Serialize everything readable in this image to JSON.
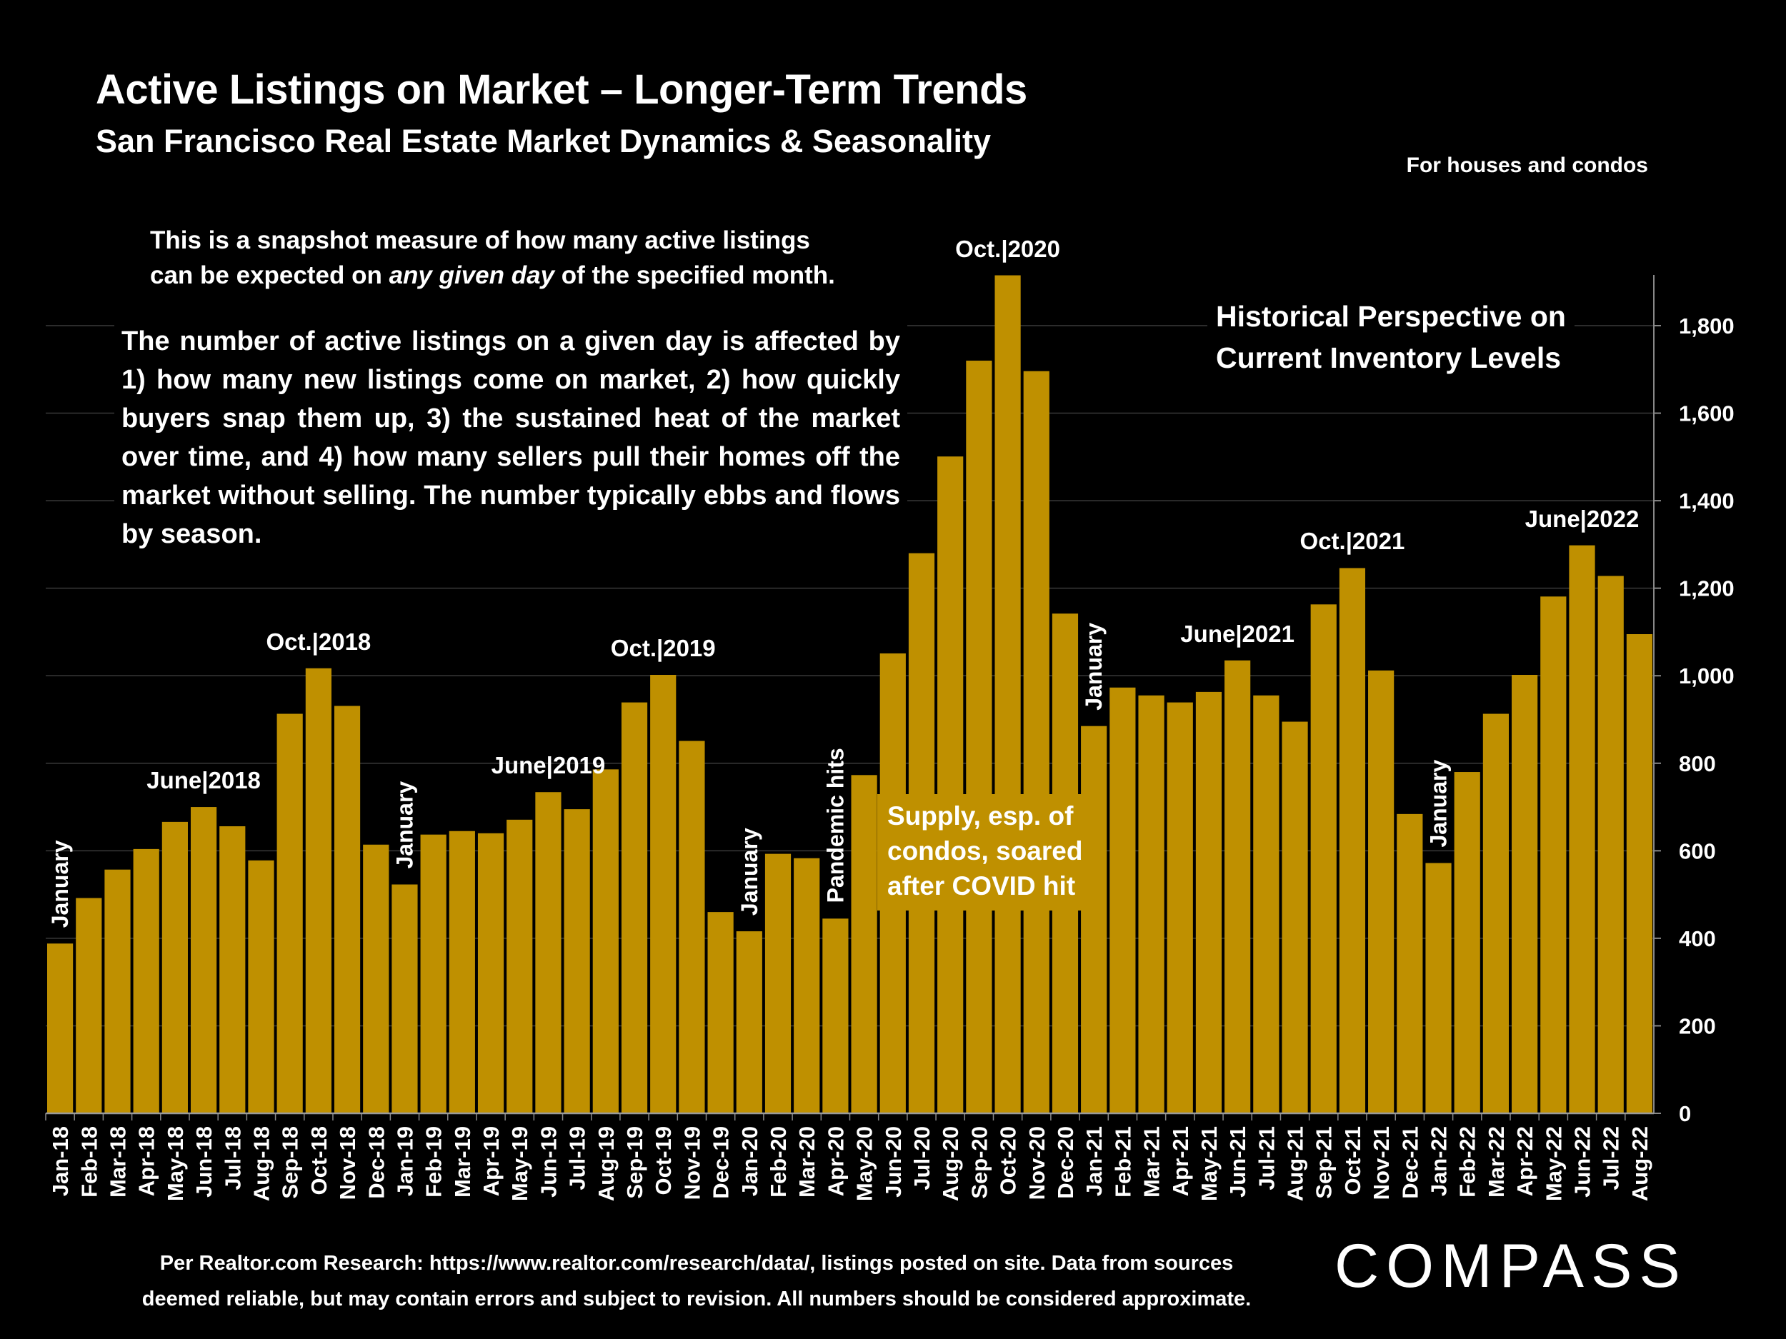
{
  "header": {
    "title": "Active Listings on Market – Longer-Term Trends",
    "subtitle": "San Francisco Real Estate Market Dynamics & Seasonality",
    "scope_note": "For houses and condos"
  },
  "notes": {
    "snapshot_line1": "This is a snapshot measure of how many active listings",
    "snapshot_line2_pre": "can be expected on ",
    "snapshot_line2_em": "any given day",
    "snapshot_line2_post": " of the specified month.",
    "explanation": "The number of active listings on a given day is affected by 1) how many new listings come on market, 2) how quickly buyers snap them up, 3) the sustained heat of the market over time, and 4) how many sellers pull their homes off the market without selling. The number typically ebbs and flows by season.",
    "historical_line1": "Historical Perspective on",
    "historical_line2": "Current Inventory Levels",
    "supply_line1": "Supply, esp. of",
    "supply_line2": "condos, soared",
    "supply_line3": "after COVID hit"
  },
  "footer": {
    "line1": "Per Realtor.com Research:  https://www.realtor.com/research/data/, listings posted on site. Data from sources",
    "line2": "deemed reliable, but may contain errors and subject to revision. All numbers should be considered approximate.",
    "logo": "COMPASS"
  },
  "colors": {
    "bar": "#BF9000",
    "background": "#000000",
    "text": "#FFFFFF",
    "grid": "#3a3a3a"
  },
  "chart_data": {
    "type": "bar",
    "title": "Active Listings on Market – Longer-Term Trends",
    "ylim": [
      0,
      1900
    ],
    "yticks": [
      0,
      200,
      400,
      600,
      800,
      1000,
      1200,
      1400,
      1600,
      1800
    ],
    "ytick_labels": [
      "0",
      "200",
      "400",
      "600",
      "800",
      "1,000",
      "1,200",
      "1,400",
      "1,600",
      "1,800"
    ],
    "y_axis_side": "right",
    "grid": true,
    "categories": [
      "Jan-18",
      "Feb-18",
      "Mar-18",
      "Apr-18",
      "May-18",
      "Jun-18",
      "Jul-18",
      "Aug-18",
      "Sep-18",
      "Oct-18",
      "Nov-18",
      "Dec-18",
      "Jan-19",
      "Feb-19",
      "Mar-19",
      "Apr-19",
      "May-19",
      "Jun-19",
      "Jul-19",
      "Aug-19",
      "Sep-19",
      "Oct-19",
      "Nov-19",
      "Dec-19",
      "Jan-20",
      "Feb-20",
      "Mar-20",
      "Apr-20",
      "May-20",
      "Jun-20",
      "Jul-20",
      "Aug-20",
      "Sep-20",
      "Oct-20",
      "Nov-20",
      "Dec-20",
      "Jan-21",
      "Feb-21",
      "Mar-21",
      "Apr-21",
      "May-21",
      "Jun-21",
      "Jul-21",
      "Aug-21",
      "Sep-21",
      "Oct-21",
      "Nov-21",
      "Dec-21",
      "Jan-22",
      "Feb-22",
      "Mar-22",
      "Apr-22",
      "May-22",
      "Jun-22",
      "Jul-22",
      "Aug-22"
    ],
    "values": [
      388,
      492,
      557,
      604,
      666,
      700,
      656,
      578,
      913,
      1017,
      931,
      614,
      523,
      637,
      645,
      640,
      671,
      734,
      695,
      786,
      939,
      1002,
      851,
      460,
      416,
      593,
      583,
      445,
      773,
      1051,
      1280,
      1501,
      1720,
      1915,
      1696,
      1142,
      885,
      973,
      955,
      939,
      963,
      1035,
      955,
      895,
      1163,
      1246,
      1012,
      684,
      572,
      780,
      913,
      1002,
      1181,
      1298,
      1228,
      1095
    ],
    "annotations": [
      {
        "category": "Jan-18",
        "text": "January",
        "orientation": "vertical"
      },
      {
        "category": "Jun-18",
        "text": "June|2018",
        "orientation": "horizontal"
      },
      {
        "category": "Oct-18",
        "text": "Oct.|2018",
        "orientation": "horizontal"
      },
      {
        "category": "Jan-19",
        "text": "January",
        "orientation": "vertical"
      },
      {
        "category": "Jun-19",
        "text": "June|2019",
        "orientation": "horizontal"
      },
      {
        "category": "Oct-19",
        "text": "Oct.|2019",
        "orientation": "horizontal"
      },
      {
        "category": "Jan-20",
        "text": "January",
        "orientation": "vertical"
      },
      {
        "category": "Apr-20",
        "text": "Pandemic hits",
        "orientation": "vertical"
      },
      {
        "category": "Oct-20",
        "text": "Oct.|2020",
        "orientation": "horizontal"
      },
      {
        "category": "Jan-21",
        "text": "January",
        "orientation": "vertical"
      },
      {
        "category": "Jun-21",
        "text": "June|2021",
        "orientation": "horizontal"
      },
      {
        "category": "Oct-21",
        "text": "Oct.|2021",
        "orientation": "horizontal"
      },
      {
        "category": "Jan-22",
        "text": "January",
        "orientation": "vertical"
      },
      {
        "category": "Jun-22",
        "text": "June|2022",
        "orientation": "horizontal"
      }
    ]
  }
}
